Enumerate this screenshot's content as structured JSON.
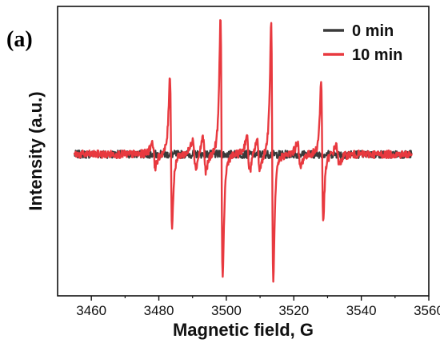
{
  "panel_label": "(a)",
  "chart_data": {
    "type": "line",
    "xlabel": "Magnetic field, G",
    "ylabel": "Intensity (a.u.)",
    "xlim": [
      3450,
      3560
    ],
    "ylim": [
      -1.1,
      1.15
    ],
    "x_ticks": [
      3460,
      3480,
      3500,
      3520,
      3540,
      3560
    ],
    "x_tick_labels": [
      "3460",
      "3480",
      "3500",
      "3520",
      "3540",
      "3560"
    ],
    "y_ticks_labels_shown": false,
    "legend_position": "top-right",
    "grid": false,
    "series": [
      {
        "name": "0 min",
        "color": "#3a3a3a",
        "x_range": [
          3455,
          3555
        ],
        "description_points": {
          "baseline": 0.0,
          "noise_amplitude": 0.03
        }
      },
      {
        "name": "10 min",
        "color": "#e8393f",
        "x_range": [
          3455,
          3555
        ],
        "peaks": [
          {
            "center": 3483.6,
            "max": 0.62,
            "min": -0.56
          },
          {
            "center": 3498.6,
            "max": 1.08,
            "min": -0.98
          },
          {
            "center": 3513.6,
            "max": 1.02,
            "min": -1.0
          },
          {
            "center": 3528.4,
            "max": 0.56,
            "min": -0.52
          }
        ],
        "small_features": [
          {
            "center": 3478.5,
            "amp": 0.1
          },
          {
            "center": 3490.5,
            "amp": 0.12
          },
          {
            "center": 3493.5,
            "amp": 0.14
          },
          {
            "center": 3506.5,
            "amp": 0.14
          },
          {
            "center": 3509.5,
            "amp": 0.12
          },
          {
            "center": 3521.5,
            "amp": 0.1
          },
          {
            "center": 3533.0,
            "amp": 0.08
          }
        ]
      }
    ]
  }
}
